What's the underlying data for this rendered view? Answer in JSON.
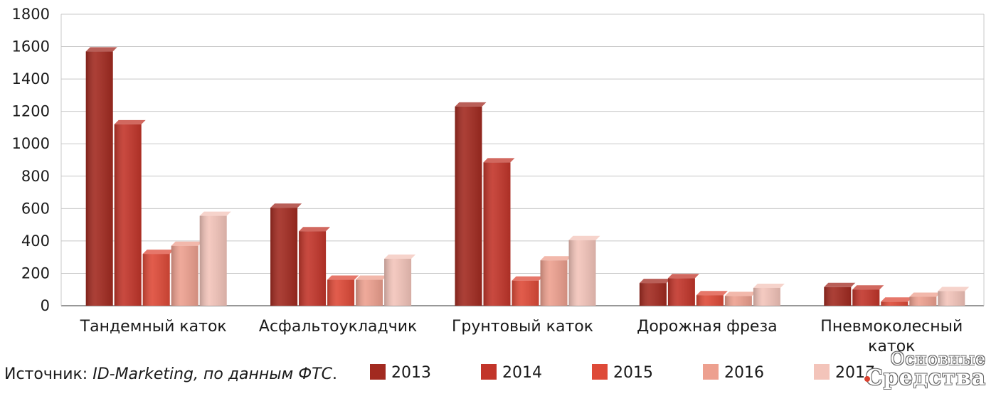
{
  "chart_data": {
    "type": "bar",
    "categories": [
      "Тандемный каток",
      "Асфальтоукладчик",
      "Грунтовый каток",
      "Дорожная фреза",
      "Пневмоколесный каток"
    ],
    "series": [
      {
        "name": "2013",
        "values": [
          1570,
          605,
          1230,
          140,
          115
        ],
        "color": "#a22a20"
      },
      {
        "name": "2014",
        "values": [
          1120,
          460,
          885,
          170,
          100
        ],
        "color": "#c2352a"
      },
      {
        "name": "2015",
        "values": [
          320,
          160,
          155,
          65,
          25
        ],
        "color": "#de4a38"
      },
      {
        "name": "2016",
        "values": [
          370,
          160,
          280,
          60,
          55
        ],
        "color": "#eda08f"
      },
      {
        "name": "2017",
        "values": [
          555,
          290,
          405,
          110,
          90
        ],
        "color": "#f3c4ba"
      }
    ],
    "ylim": [
      0,
      1800
    ],
    "yticks": [
      "0",
      "200",
      "400",
      "600",
      "800",
      "1000",
      "1200",
      "1400",
      "1600",
      "1800"
    ],
    "grid": true,
    "legend_position": "bottom"
  },
  "source": {
    "prefix": "Источник: ",
    "name": "ID-Marketing, по данным ФТС",
    "suffix": "."
  },
  "watermark": {
    "line1": "Основные",
    "line2": "Средства"
  }
}
